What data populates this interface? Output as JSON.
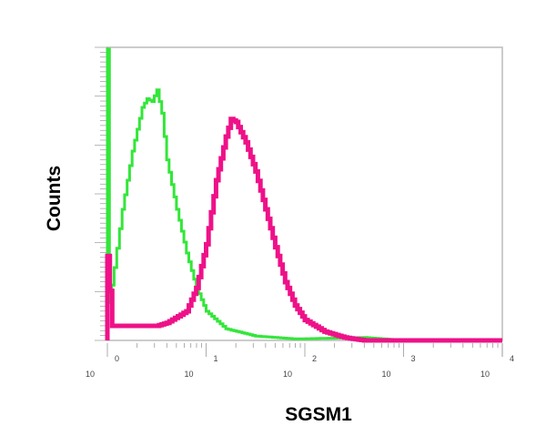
{
  "chart_data": {
    "type": "line",
    "xlabel": "SGSM1",
    "ylabel": "Counts",
    "x_scale": "log",
    "xlim": [
      1,
      10000
    ],
    "ylim": [
      0,
      1
    ],
    "x_tick_labels": [
      {
        "base": "10",
        "exp": "0"
      },
      {
        "base": "10",
        "exp": "1"
      },
      {
        "base": "10",
        "exp": "2"
      },
      {
        "base": "10",
        "exp": "3"
      },
      {
        "base": "10",
        "exp": "4"
      }
    ],
    "grid": false,
    "legend": "none",
    "series": [
      {
        "color": "#33e63a",
        "points": [
          [
            1,
            1.0
          ],
          [
            1.05,
            0.13
          ],
          [
            1.17,
            0.25
          ],
          [
            1.41,
            0.45
          ],
          [
            1.78,
            0.65
          ],
          [
            2.24,
            0.8
          ],
          [
            2.51,
            0.83
          ],
          [
            2.82,
            0.82
          ],
          [
            3.16,
            0.86
          ],
          [
            3.55,
            0.78
          ],
          [
            3.98,
            0.62
          ],
          [
            5.01,
            0.45
          ],
          [
            6.31,
            0.3
          ],
          [
            7.94,
            0.18
          ],
          [
            10,
            0.1
          ],
          [
            15.8,
            0.04
          ],
          [
            31.6,
            0.015
          ],
          [
            79.4,
            0.005
          ],
          [
            398,
            0.01
          ],
          [
            1000,
            0.0
          ],
          [
            10000,
            0.0
          ]
        ]
      },
      {
        "color": "#ee1188",
        "points": [
          [
            1,
            0.29
          ],
          [
            1.12,
            0.05
          ],
          [
            1.78,
            0.05
          ],
          [
            3.16,
            0.05
          ],
          [
            3.98,
            0.06
          ],
          [
            6.31,
            0.1
          ],
          [
            7.94,
            0.18
          ],
          [
            10,
            0.33
          ],
          [
            12.6,
            0.55
          ],
          [
            15.8,
            0.7
          ],
          [
            17.8,
            0.76
          ],
          [
            20,
            0.75
          ],
          [
            25.1,
            0.68
          ],
          [
            31.6,
            0.58
          ],
          [
            39.8,
            0.45
          ],
          [
            50.1,
            0.32
          ],
          [
            63.1,
            0.2
          ],
          [
            79.4,
            0.12
          ],
          [
            100,
            0.07
          ],
          [
            158,
            0.03
          ],
          [
            251,
            0.01
          ],
          [
            398,
            0.0
          ],
          [
            10000,
            0.0
          ]
        ]
      }
    ]
  }
}
